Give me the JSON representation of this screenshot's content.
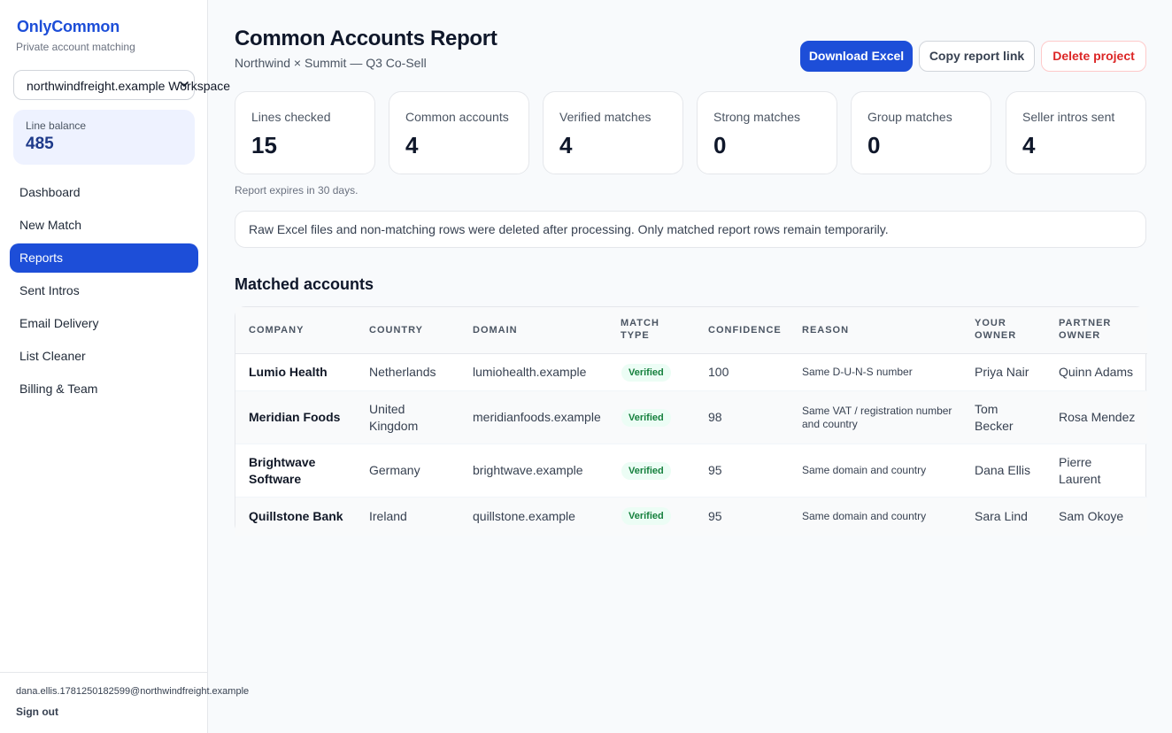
{
  "sidebar": {
    "brand": "OnlyCommon",
    "brand_sub": "Private account matching",
    "workspace": "northwindfreight.example Workspace",
    "balance_label": "Line balance",
    "balance_value": "485",
    "nav": [
      {
        "label": "Dashboard",
        "active": false
      },
      {
        "label": "New Match",
        "active": false
      },
      {
        "label": "Reports",
        "active": true
      },
      {
        "label": "Sent Intros",
        "active": false
      },
      {
        "label": "Email Delivery",
        "active": false
      },
      {
        "label": "List Cleaner",
        "active": false
      },
      {
        "label": "Billing & Team",
        "active": false
      }
    ],
    "user_email": "dana.ellis.1781250182599@northwindfreight.example",
    "sign_out": "Sign out"
  },
  "header": {
    "title": "Common Accounts Report",
    "subtitle": "Northwind × Summit — Q3 Co-Sell",
    "download_label": "Download Excel",
    "copy_label": "Copy report link",
    "delete_label": "Delete project"
  },
  "stats": [
    {
      "label": "Lines checked",
      "value": "15"
    },
    {
      "label": "Common accounts",
      "value": "4"
    },
    {
      "label": "Verified matches",
      "value": "4"
    },
    {
      "label": "Strong matches",
      "value": "0"
    },
    {
      "label": "Group matches",
      "value": "0"
    },
    {
      "label": "Seller intros sent",
      "value": "4"
    }
  ],
  "expires_text": "Report expires in 30 days.",
  "notice_text": "Raw Excel files and non-matching rows were deleted after processing. Only matched report rows remain temporarily.",
  "table": {
    "section_title": "Matched accounts",
    "columns": [
      "Company",
      "Country",
      "Domain",
      "Match type",
      "Confidence",
      "Reason",
      "Your owner",
      "Partner owner"
    ],
    "rows": [
      {
        "company": "Lumio Health",
        "country": "Netherlands",
        "domain": "lumiohealth.example",
        "match_type": "Verified",
        "confidence": "100",
        "reason": "Same D-U-N-S number",
        "your_owner": "Priya Nair",
        "partner_owner": "Quinn Adams"
      },
      {
        "company": "Meridian Foods",
        "country": "United Kingdom",
        "domain": "meridianfoods.example",
        "match_type": "Verified",
        "confidence": "98",
        "reason": "Same VAT / registration number and country",
        "your_owner": "Tom Becker",
        "partner_owner": "Rosa Mendez"
      },
      {
        "company": "Brightwave Software",
        "country": "Germany",
        "domain": "brightwave.example",
        "match_type": "Verified",
        "confidence": "95",
        "reason": "Same domain and country",
        "your_owner": "Dana Ellis",
        "partner_owner": "Pierre Laurent"
      },
      {
        "company": "Quillstone Bank",
        "country": "Ireland",
        "domain": "quillstone.example",
        "match_type": "Verified",
        "confidence": "95",
        "reason": "Same domain and country",
        "your_owner": "Sara Lind",
        "partner_owner": "Sam Okoye"
      }
    ]
  },
  "colors": {
    "accent": "#1d4ed8",
    "danger": "#dc2626",
    "verified": "#15803d"
  }
}
